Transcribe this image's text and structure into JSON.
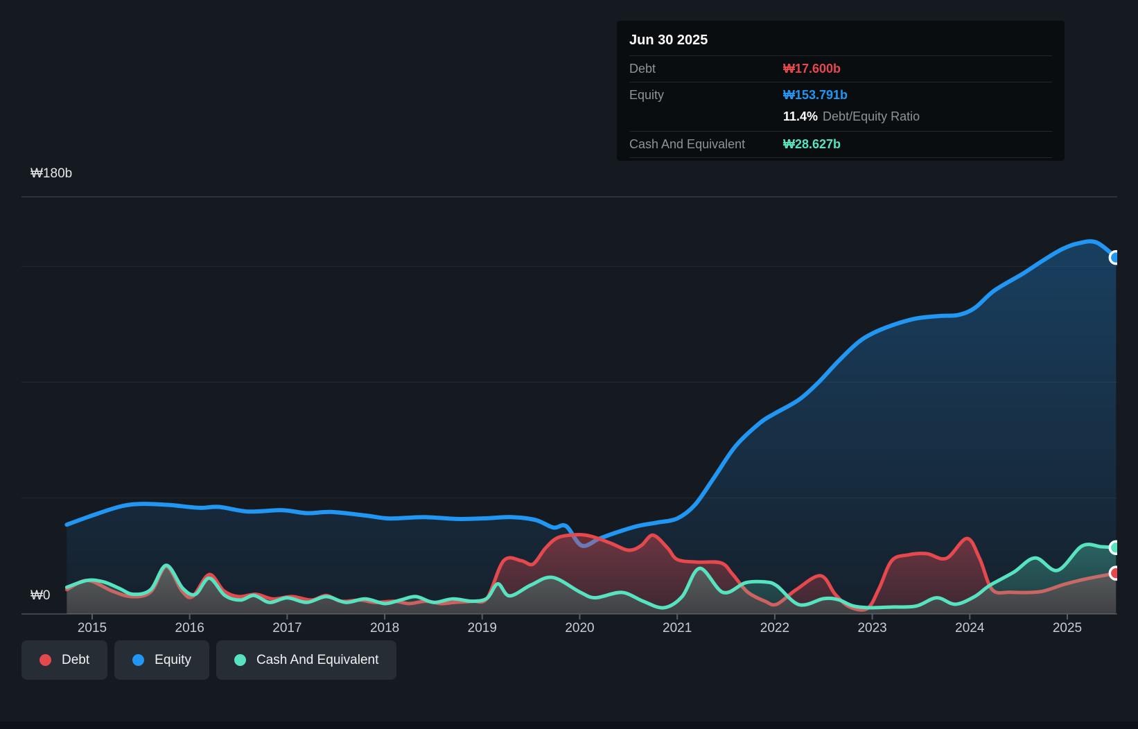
{
  "colors": {
    "debt": "#e5484d",
    "equity": "#2196f3",
    "cash": "#57e3c0",
    "background": "#151a21"
  },
  "tooltip": {
    "date": "Jun 30 2025",
    "rows": [
      {
        "key": "debt",
        "label": "Debt",
        "value": "₩17.600b"
      },
      {
        "key": "equity",
        "label": "Equity",
        "value": "₩153.791b"
      },
      {
        "key": "cash",
        "label": "Cash And Equivalent",
        "value": "₩28.627b"
      }
    ],
    "ratio_value": "11.4%",
    "ratio_label": "Debt/Equity Ratio"
  },
  "y_axis": {
    "top_label": "₩180b",
    "bottom_label": "₩0"
  },
  "x_axis": {
    "years": [
      "2015",
      "2016",
      "2017",
      "2018",
      "2019",
      "2020",
      "2021",
      "2022",
      "2023",
      "2024",
      "2025"
    ]
  },
  "legend": {
    "items": [
      {
        "key": "debt",
        "label": "Debt"
      },
      {
        "key": "equity",
        "label": "Equity"
      },
      {
        "key": "cash",
        "label": "Cash And Equivalent"
      }
    ]
  },
  "chart_data": {
    "type": "area",
    "unit": "KRW billions",
    "xlim": [
      2014.74,
      2025.5
    ],
    "ylim": [
      0,
      180
    ],
    "gridline_values": [
      180,
      150,
      100,
      50
    ],
    "x_tick_years": [
      2015,
      2016,
      2017,
      2018,
      2019,
      2020,
      2021,
      2022,
      2023,
      2024,
      2025
    ],
    "series": [
      {
        "key": "debt",
        "name": "Debt",
        "points": [
          [
            2014.74,
            10.5
          ],
          [
            2014.95,
            14.5
          ],
          [
            2015.2,
            10
          ],
          [
            2015.4,
            7.5
          ],
          [
            2015.6,
            9.5
          ],
          [
            2015.76,
            20.5
          ],
          [
            2015.92,
            10
          ],
          [
            2016.03,
            7.5
          ],
          [
            2016.2,
            17
          ],
          [
            2016.35,
            10
          ],
          [
            2016.5,
            7.5
          ],
          [
            2016.68,
            8.5
          ],
          [
            2016.85,
            6.5
          ],
          [
            2017.05,
            7.5
          ],
          [
            2017.25,
            6
          ],
          [
            2017.4,
            8
          ],
          [
            2017.55,
            5.5
          ],
          [
            2017.75,
            6
          ],
          [
            2017.9,
            5
          ],
          [
            2018.1,
            5.5
          ],
          [
            2018.25,
            4.5
          ],
          [
            2018.42,
            5.5
          ],
          [
            2018.58,
            4.5
          ],
          [
            2018.72,
            5
          ],
          [
            2018.9,
            5.5
          ],
          [
            2019.05,
            6.8
          ],
          [
            2019.22,
            23
          ],
          [
            2019.4,
            23
          ],
          [
            2019.52,
            21.5
          ],
          [
            2019.65,
            28.5
          ],
          [
            2019.78,
            33
          ],
          [
            2019.97,
            34.2
          ],
          [
            2020.12,
            33.5
          ],
          [
            2020.32,
            30.5
          ],
          [
            2020.5,
            27.5
          ],
          [
            2020.63,
            29.5
          ],
          [
            2020.75,
            34
          ],
          [
            2020.9,
            28.5
          ],
          [
            2021.0,
            23.5
          ],
          [
            2021.2,
            22.4
          ],
          [
            2021.45,
            22
          ],
          [
            2021.57,
            17
          ],
          [
            2021.72,
            9.5
          ],
          [
            2021.9,
            5.5
          ],
          [
            2022.02,
            4.2
          ],
          [
            2022.22,
            10.5
          ],
          [
            2022.47,
            16.5
          ],
          [
            2022.62,
            8.5
          ],
          [
            2022.77,
            3
          ],
          [
            2022.95,
            2.4
          ],
          [
            2023.07,
            11
          ],
          [
            2023.2,
            23
          ],
          [
            2023.37,
            25.5
          ],
          [
            2023.56,
            26
          ],
          [
            2023.76,
            24
          ],
          [
            2023.97,
            32.6
          ],
          [
            2024.1,
            24
          ],
          [
            2024.23,
            10.5
          ],
          [
            2024.42,
            9.4
          ],
          [
            2024.72,
            9.6
          ],
          [
            2024.97,
            12.8
          ],
          [
            2025.2,
            15.2
          ],
          [
            2025.5,
            17.6
          ]
        ]
      },
      {
        "key": "equity",
        "name": "Equity",
        "points": [
          [
            2014.74,
            38.5
          ],
          [
            2015.0,
            42.5
          ],
          [
            2015.3,
            46.5
          ],
          [
            2015.52,
            47.5
          ],
          [
            2015.8,
            47
          ],
          [
            2016.1,
            45.8
          ],
          [
            2016.3,
            46.2
          ],
          [
            2016.6,
            44.2
          ],
          [
            2016.95,
            44.8
          ],
          [
            2017.2,
            43.5
          ],
          [
            2017.45,
            44
          ],
          [
            2017.8,
            42.5
          ],
          [
            2018.05,
            41.2
          ],
          [
            2018.4,
            41.8
          ],
          [
            2018.75,
            41
          ],
          [
            2019.05,
            41.3
          ],
          [
            2019.3,
            41.8
          ],
          [
            2019.55,
            40.5
          ],
          [
            2019.73,
            37.3
          ],
          [
            2019.86,
            37.9
          ],
          [
            2020.02,
            29.5
          ],
          [
            2020.2,
            32.5
          ],
          [
            2020.4,
            35.5
          ],
          [
            2020.6,
            38
          ],
          [
            2020.8,
            39.5
          ],
          [
            2021.0,
            41.2
          ],
          [
            2021.18,
            47
          ],
          [
            2021.38,
            59
          ],
          [
            2021.6,
            72.5
          ],
          [
            2021.85,
            82.5
          ],
          [
            2022.0,
            86.5
          ],
          [
            2022.25,
            92.5
          ],
          [
            2022.45,
            100
          ],
          [
            2022.65,
            109
          ],
          [
            2022.85,
            117
          ],
          [
            2023.0,
            121
          ],
          [
            2023.2,
            124.5
          ],
          [
            2023.45,
            127.5
          ],
          [
            2023.7,
            128.6
          ],
          [
            2023.88,
            129
          ],
          [
            2024.05,
            132
          ],
          [
            2024.25,
            139.5
          ],
          [
            2024.55,
            147
          ],
          [
            2024.75,
            152.5
          ],
          [
            2024.95,
            157.5
          ],
          [
            2025.12,
            160
          ],
          [
            2025.3,
            160.3
          ],
          [
            2025.5,
            153.791
          ]
        ]
      },
      {
        "key": "cash",
        "name": "Cash And Equivalent",
        "points": [
          [
            2014.74,
            11.5
          ],
          [
            2014.95,
            14.5
          ],
          [
            2015.12,
            13.8
          ],
          [
            2015.28,
            11
          ],
          [
            2015.42,
            8.5
          ],
          [
            2015.6,
            10.5
          ],
          [
            2015.76,
            21
          ],
          [
            2015.93,
            11
          ],
          [
            2016.06,
            8.5
          ],
          [
            2016.2,
            15.5
          ],
          [
            2016.36,
            8
          ],
          [
            2016.52,
            6
          ],
          [
            2016.66,
            8
          ],
          [
            2016.82,
            5
          ],
          [
            2017.0,
            7
          ],
          [
            2017.2,
            5
          ],
          [
            2017.4,
            7.5
          ],
          [
            2017.6,
            5
          ],
          [
            2017.8,
            6.5
          ],
          [
            2018.0,
            4.5
          ],
          [
            2018.16,
            6
          ],
          [
            2018.32,
            7.5
          ],
          [
            2018.5,
            5
          ],
          [
            2018.7,
            6.5
          ],
          [
            2018.9,
            5.5
          ],
          [
            2019.05,
            6.8
          ],
          [
            2019.16,
            13
          ],
          [
            2019.28,
            7.8
          ],
          [
            2019.5,
            12.5
          ],
          [
            2019.72,
            15.8
          ],
          [
            2020.0,
            9.5
          ],
          [
            2020.16,
            7
          ],
          [
            2020.43,
            9.3
          ],
          [
            2020.65,
            5.5
          ],
          [
            2020.86,
            2.7
          ],
          [
            2021.05,
            7.5
          ],
          [
            2021.23,
            19.7
          ],
          [
            2021.47,
            9.3
          ],
          [
            2021.7,
            13.5
          ],
          [
            2021.9,
            13.8
          ],
          [
            2022.02,
            12.2
          ],
          [
            2022.25,
            4
          ],
          [
            2022.5,
            6.6
          ],
          [
            2022.65,
            6.2
          ],
          [
            2022.8,
            3.5
          ],
          [
            2022.97,
            2.7
          ],
          [
            2023.2,
            3
          ],
          [
            2023.45,
            3.4
          ],
          [
            2023.66,
            7
          ],
          [
            2023.85,
            4.2
          ],
          [
            2024.05,
            7.5
          ],
          [
            2024.2,
            12.2
          ],
          [
            2024.45,
            18
          ],
          [
            2024.67,
            24.2
          ],
          [
            2024.9,
            18.8
          ],
          [
            2025.15,
            29.3
          ],
          [
            2025.35,
            29
          ],
          [
            2025.5,
            28.627
          ]
        ]
      }
    ]
  }
}
